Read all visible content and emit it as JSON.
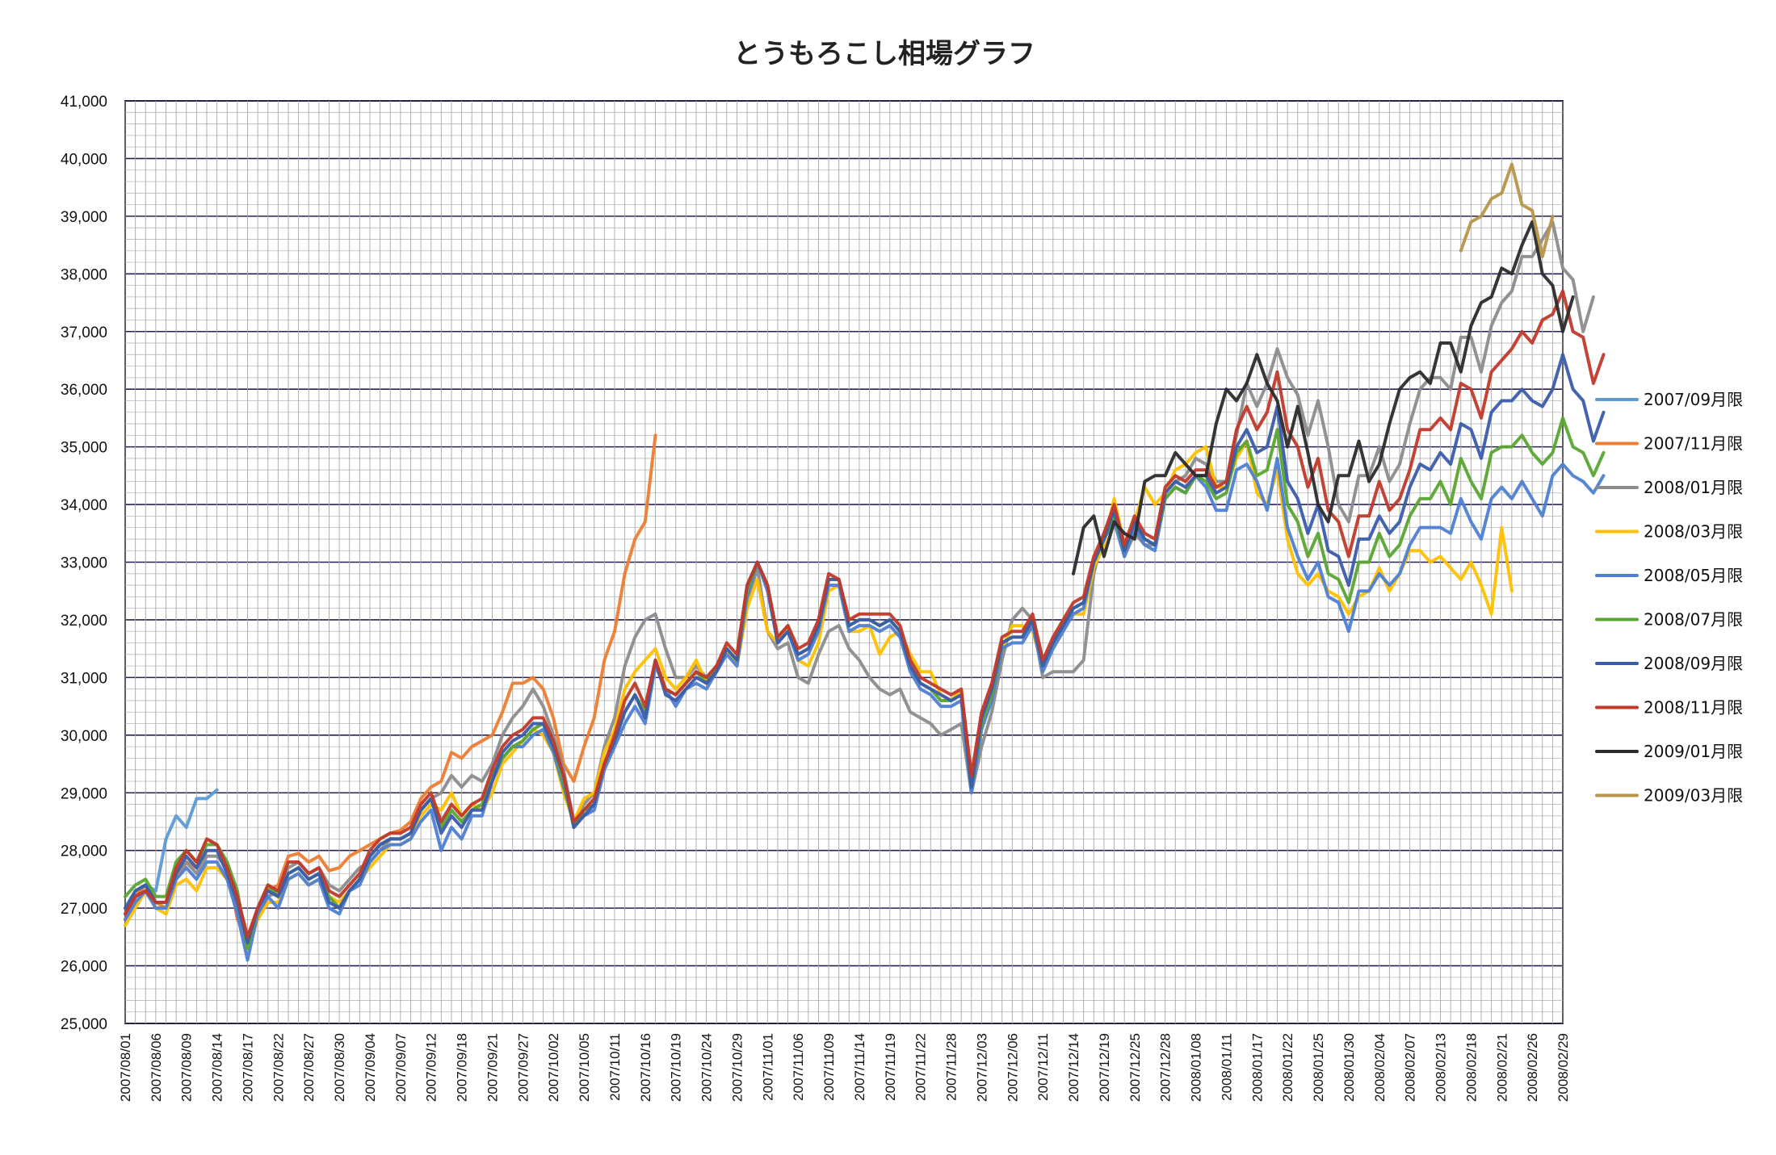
{
  "chart_data": {
    "type": "line",
    "title": "とうもろこし相場グラフ",
    "xlabel": "",
    "ylabel": "",
    "ylim": [
      25000,
      41000
    ],
    "yticks": [
      "25,000",
      "26,000",
      "27,000",
      "28,000",
      "29,000",
      "30,000",
      "31,000",
      "32,000",
      "33,000",
      "34,000",
      "35,000",
      "36,000",
      "37,000",
      "38,000",
      "39,000",
      "40,000",
      "41,000"
    ],
    "x_tick_labels": [
      "2007/08/01",
      "2007/08/06",
      "2007/08/09",
      "2007/08/14",
      "2007/08/17",
      "2007/08/22",
      "2007/08/27",
      "2007/08/30",
      "2007/09/04",
      "2007/09/07",
      "2007/09/12",
      "2007/09/18",
      "2007/09/21",
      "2007/09/27",
      "2007/10/02",
      "2007/10/05",
      "2007/10/11",
      "2007/10/16",
      "2007/10/19",
      "2007/10/24",
      "2007/10/29",
      "2007/11/01",
      "2007/11/06",
      "2007/11/09",
      "2007/11/14",
      "2007/11/19",
      "2007/11/22",
      "2007/11/28",
      "2007/12/03",
      "2007/12/06",
      "2007/12/11",
      "2007/12/14",
      "2007/12/19",
      "2007/12/25",
      "2007/12/28",
      "2008/01/08",
      "2008/01/11",
      "2008/01/17",
      "2008/01/22",
      "2008/01/25",
      "2008/01/30",
      "2008/02/04",
      "2008/02/07",
      "2008/02/13",
      "2008/02/18",
      "2008/02/21",
      "2008/02/26",
      "2008/02/29"
    ],
    "grid": true,
    "legend_position": "right",
    "series": [
      {
        "name": "2007/09月限",
        "color": "#5b9bd5",
        "start": 0,
        "values": [
          26800,
          27200,
          27400,
          27300,
          28200,
          28600,
          28400,
          28900,
          28900,
          29050
        ]
      },
      {
        "name": "2007/11月限",
        "color": "#ed7d31",
        "start": 0,
        "values": [
          26800,
          27200,
          27400,
          27100,
          27000,
          27500,
          27800,
          27700,
          28200,
          28100,
          27800,
          26800,
          26500,
          27000,
          27300,
          27400,
          27900,
          27950,
          27800,
          27900,
          27650,
          27700,
          27900,
          28000,
          28100,
          28200,
          28300,
          28350,
          28500,
          28900,
          29100,
          29200,
          29700,
          29600,
          29800,
          29900,
          30000,
          30400,
          30900,
          30900,
          31000,
          30800,
          30300,
          29500,
          29200,
          29800,
          30300,
          31300,
          31800,
          32800,
          33400,
          33700,
          35200
        ]
      },
      {
        "name": "2008/01月限",
        "color": "#8c8c8c",
        "start": 0,
        "values": [
          26900,
          27300,
          27400,
          27000,
          27000,
          27600,
          27800,
          27600,
          27900,
          27900,
          27700,
          27200,
          26500,
          26800,
          27200,
          27300,
          27700,
          27800,
          27600,
          27700,
          27400,
          27300,
          27500,
          27700,
          27800,
          28000,
          28200,
          28200,
          28300,
          28700,
          28900,
          29000,
          29300,
          29100,
          29300,
          29200,
          29500,
          30000,
          30300,
          30500,
          30800,
          30500,
          30000,
          29400,
          28500,
          28800,
          29000,
          29800,
          30300,
          31200,
          31700,
          32000,
          32100,
          31500,
          31000,
          31000,
          31200,
          31000,
          31200,
          31500,
          31200,
          32300,
          32900,
          31800,
          31500,
          31600,
          31000,
          30900,
          31400,
          31800,
          31900,
          31500,
          31300,
          31000,
          30800,
          30700,
          30800,
          30400,
          30300,
          30200,
          30000,
          30100,
          30200,
          29000,
          29800,
          30400,
          31300,
          32000,
          32200,
          32000,
          31000,
          31100,
          31100,
          31100,
          31300,
          32800,
          33500,
          33900,
          33100,
          33500,
          33300,
          33300,
          34200,
          34400,
          34500,
          34800,
          34700,
          34400,
          34400,
          35200,
          36100,
          35700,
          36100,
          36700,
          36200,
          35900,
          35200,
          35800,
          35000,
          34000,
          33700,
          34500,
          34500,
          35000,
          34400,
          34700,
          35400,
          36000,
          36200,
          36200,
          36000,
          36900,
          36900,
          36300,
          37100,
          37500,
          37700,
          38300,
          38300,
          38600,
          38900,
          38100,
          37900,
          37000,
          37600
        ]
      },
      {
        "name": "2008/03月限",
        "color": "#ffc000",
        "start": 0,
        "values": [
          26700,
          27000,
          27300,
          27000,
          26900,
          27400,
          27500,
          27300,
          27700,
          27700,
          27500,
          27100,
          26300,
          26800,
          27100,
          27100,
          27500,
          27600,
          27400,
          27500,
          27200,
          27100,
          27300,
          27500,
          27700,
          27900,
          28100,
          28100,
          28200,
          28600,
          28800,
          28700,
          29000,
          28600,
          28800,
          28700,
          29000,
          29500,
          29700,
          29900,
          30100,
          30000,
          29700,
          29000,
          28500,
          28900,
          29000,
          29700,
          30100,
          30800,
          31100,
          31300,
          31500,
          31000,
          30800,
          31000,
          31300,
          30900,
          31100,
          31500,
          31200,
          32200,
          32700,
          31800,
          31600,
          31900,
          31300,
          31200,
          31600,
          32500,
          32600,
          31800,
          31800,
          31900,
          31400,
          31700,
          31800,
          31400,
          31100,
          31100,
          30700,
          30600,
          30800,
          29200,
          30300,
          30800,
          31500,
          31900,
          31900,
          31800,
          31200,
          31600,
          32000,
          32100,
          32100,
          32900,
          33300,
          34100,
          33300,
          33700,
          34300,
          34000,
          34200,
          34600,
          34700,
          34900,
          35000,
          34300,
          34300,
          34800,
          35100,
          34200,
          34000,
          34600,
          33400,
          32800,
          32600,
          32800,
          32500,
          32400,
          32100,
          32400,
          32500,
          32900,
          32500,
          32800,
          33200,
          33200,
          33000,
          33100,
          32900,
          32700,
          33000,
          32600,
          32100,
          33600,
          32500
        ]
      },
      {
        "name": "2008/05月限",
        "color": "#4e7fd4",
        "start": 0,
        "values": [
          26800,
          27100,
          27300,
          27000,
          27000,
          27500,
          27700,
          27500,
          27800,
          27800,
          27500,
          26900,
          26100,
          26900,
          27200,
          27000,
          27500,
          27600,
          27400,
          27500,
          27000,
          26900,
          27300,
          27400,
          27800,
          28000,
          28100,
          28100,
          28200,
          28500,
          28700,
          28000,
          28400,
          28200,
          28600,
          28600,
          29200,
          29600,
          29800,
          29800,
          30000,
          30100,
          29700,
          29100,
          28500,
          28600,
          28700,
          29400,
          29800,
          30200,
          30500,
          30200,
          31200,
          30800,
          30500,
          30800,
          30900,
          30800,
          31100,
          31400,
          31200,
          32400,
          33000,
          32500,
          31600,
          31800,
          31300,
          31400,
          31800,
          32600,
          32600,
          31800,
          31900,
          31900,
          31800,
          31900,
          31700,
          31100,
          30800,
          30700,
          30500,
          30500,
          30600,
          29000,
          30100,
          30600,
          31500,
          31600,
          31600,
          31900,
          31100,
          31500,
          31800,
          32100,
          32200,
          33000,
          33400,
          33700,
          33100,
          33600,
          33300,
          33200,
          34100,
          34300,
          34200,
          34500,
          34300,
          33900,
          33900,
          34600,
          34700,
          34400,
          33900,
          34800,
          33600,
          33100,
          32700,
          33000,
          32400,
          32300,
          31800,
          32500,
          32500,
          32800,
          32600,
          32800,
          33300,
          33600,
          33600,
          33600,
          33500,
          34100,
          33700,
          33400,
          34100,
          34300,
          34100,
          34400,
          34100,
          33800,
          34500,
          34700,
          34500,
          34400,
          34200,
          34500
        ]
      },
      {
        "name": "2008/07月限",
        "color": "#5aa532",
        "start": 0,
        "values": [
          27200,
          27400,
          27500,
          27200,
          27200,
          27800,
          28000,
          27800,
          28100,
          28100,
          27800,
          27300,
          26300,
          27000,
          27400,
          27200,
          27600,
          27700,
          27500,
          27600,
          27200,
          27000,
          27300,
          27500,
          27900,
          28100,
          28200,
          28200,
          28300,
          28700,
          28900,
          28400,
          28700,
          28500,
          28700,
          28800,
          29300,
          29600,
          29800,
          29900,
          30100,
          30200,
          29800,
          29200,
          28400,
          28700,
          28800,
          29500,
          29900,
          30400,
          30700,
          30400,
          31300,
          30800,
          30700,
          30900,
          31100,
          30900,
          31200,
          31500,
          31300,
          32500,
          33000,
          32600,
          31700,
          31900,
          31400,
          31500,
          31900,
          32700,
          32700,
          31900,
          32000,
          32000,
          31900,
          32000,
          31800,
          31200,
          30900,
          30800,
          30600,
          30600,
          30700,
          29100,
          30200,
          30700,
          31600,
          31700,
          31700,
          32000,
          31200,
          31600,
          31900,
          32200,
          32300,
          33000,
          33400,
          33800,
          33200,
          33700,
          33400,
          33300,
          34100,
          34300,
          34200,
          34500,
          34400,
          34100,
          34200,
          34900,
          35100,
          34500,
          34600,
          35300,
          34000,
          33700,
          33100,
          33500,
          32800,
          32700,
          32300,
          33000,
          33000,
          33500,
          33100,
          33300,
          33800,
          34100,
          34100,
          34400,
          34000,
          34800,
          34400,
          34100,
          34900,
          35000,
          35000,
          35200,
          34900,
          34700,
          34900,
          35500,
          35000,
          34900,
          34500,
          34900
        ]
      },
      {
        "name": "2008/09月限",
        "color": "#3b5cab",
        "start": 0,
        "values": [
          27000,
          27300,
          27400,
          27100,
          27100,
          27600,
          27900,
          27700,
          28000,
          28000,
          27600,
          27100,
          26400,
          27000,
          27300,
          27200,
          27600,
          27700,
          27500,
          27600,
          27100,
          27000,
          27300,
          27500,
          27900,
          28100,
          28200,
          28200,
          28300,
          28700,
          28900,
          28300,
          28600,
          28400,
          28700,
          28700,
          29200,
          29700,
          29900,
          30000,
          30200,
          30200,
          29800,
          29300,
          28400,
          28600,
          28800,
          29500,
          29900,
          30400,
          30700,
          30300,
          31300,
          30700,
          30600,
          30800,
          31000,
          30900,
          31100,
          31500,
          31300,
          32600,
          33000,
          32600,
          31600,
          31800,
          31400,
          31500,
          31900,
          32700,
          32700,
          31900,
          32000,
          32000,
          31900,
          32000,
          31800,
          31200,
          30900,
          30800,
          30700,
          30600,
          30700,
          29100,
          30300,
          30800,
          31600,
          31700,
          31700,
          32000,
          31200,
          31600,
          31900,
          32200,
          32300,
          33000,
          33400,
          33900,
          33200,
          33700,
          33400,
          33300,
          34200,
          34400,
          34300,
          34500,
          34500,
          34200,
          34300,
          35000,
          35300,
          34900,
          35000,
          35700,
          34400,
          34100,
          33500,
          34000,
          33200,
          33100,
          32600,
          33400,
          33400,
          33800,
          33500,
          33700,
          34300,
          34700,
          34600,
          34900,
          34700,
          35400,
          35300,
          34800,
          35600,
          35800,
          35800,
          36000,
          35800,
          35700,
          36000,
          36600,
          36000,
          35800,
          35100,
          35600
        ]
      },
      {
        "name": "2008/11月限",
        "color": "#c0392b",
        "start": 0,
        "values": [
          26900,
          27200,
          27300,
          27100,
          27100,
          27700,
          28000,
          27800,
          28200,
          28100,
          27700,
          27200,
          26500,
          27000,
          27400,
          27300,
          27800,
          27800,
          27600,
          27700,
          27300,
          27200,
          27400,
          27600,
          28000,
          28200,
          28300,
          28300,
          28400,
          28800,
          29000,
          28500,
          28800,
          28600,
          28800,
          28900,
          29400,
          29800,
          30000,
          30100,
          30300,
          30300,
          29900,
          29300,
          28500,
          28700,
          28900,
          29500,
          30000,
          30600,
          30900,
          30500,
          31300,
          30800,
          30700,
          30900,
          31100,
          31000,
          31200,
          31600,
          31400,
          32600,
          33000,
          32600,
          31700,
          31900,
          31500,
          31600,
          32000,
          32800,
          32700,
          32000,
          32100,
          32100,
          32100,
          32100,
          31900,
          31300,
          31000,
          30900,
          30800,
          30700,
          30800,
          29300,
          30400,
          30900,
          31700,
          31800,
          31800,
          32100,
          31300,
          31700,
          32000,
          32300,
          32400,
          33100,
          33500,
          34000,
          33300,
          33800,
          33500,
          33400,
          34300,
          34500,
          34400,
          34600,
          34600,
          34300,
          34400,
          35300,
          35700,
          35300,
          35600,
          36300,
          35300,
          35000,
          34300,
          34800,
          33900,
          33700,
          33100,
          33800,
          33800,
          34400,
          33900,
          34100,
          34600,
          35300,
          35300,
          35500,
          35300,
          36100,
          36000,
          35500,
          36300,
          36500,
          36700,
          37000,
          36800,
          37200,
          37300,
          37700,
          37000,
          36900,
          36100,
          36600
        ]
      },
      {
        "name": "2009/01月限",
        "color": "#2b2b2b",
        "start": 93,
        "values": [
          32800,
          33600,
          33800,
          33100,
          33700,
          33500,
          33400,
          34400,
          34500,
          34500,
          34900,
          34700,
          34500,
          34500,
          35400,
          36000,
          35800,
          36100,
          36600,
          36100,
          35800,
          35000,
          35700,
          34900,
          34000,
          33700,
          34500,
          34500,
          35100,
          34400,
          34700,
          35400,
          36000,
          36200,
          36300,
          36100,
          36800,
          36800,
          36300,
          37100,
          37500,
          37600,
          38100,
          38000,
          38500,
          38900,
          38000,
          37800,
          37000,
          37600
        ]
      },
      {
        "name": "2009/03月限",
        "color": "#b8954a",
        "start": 131,
        "values": [
          38400,
          38900,
          39000,
          39300,
          39400,
          39900,
          39200,
          39100,
          38300,
          39000
        ]
      }
    ]
  },
  "legend": {
    "items": [
      "2007/09月限",
      "2007/11月限",
      "2008/01月限",
      "2008/03月限",
      "2008/05月限",
      "2008/07月限",
      "2008/09月限",
      "2008/11月限",
      "2009/01月限",
      "2009/03月限"
    ]
  }
}
